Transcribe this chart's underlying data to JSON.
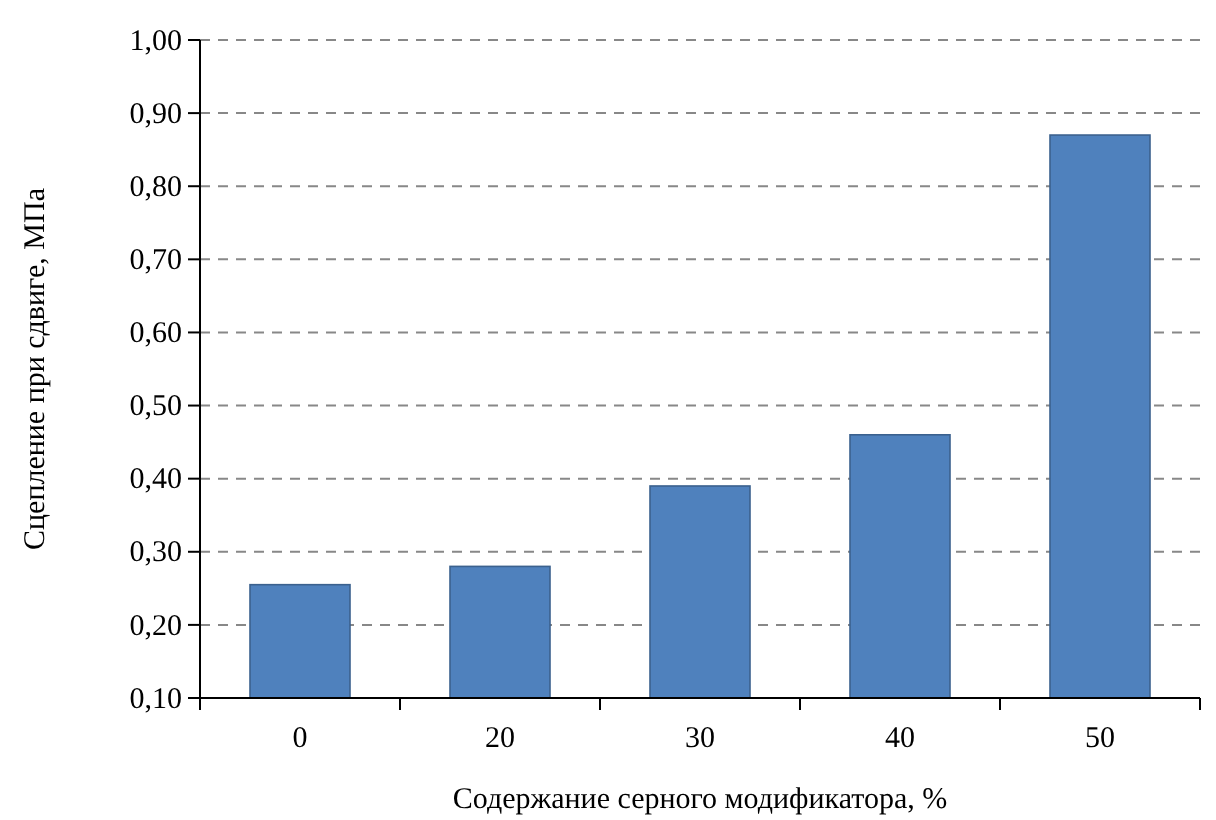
{
  "chart_data": {
    "type": "bar",
    "xlabel": "Содержание серного модификатора, %",
    "ylabel": "Сцепление при сдвиге, МПа",
    "categories": [
      "0",
      "20",
      "30",
      "40",
      "50"
    ],
    "values": [
      0.255,
      0.28,
      0.39,
      0.46,
      0.87
    ],
    "color": "#4f81bd",
    "ylim": [
      0.1,
      1.0
    ],
    "yticks": [
      {
        "value": 0.1,
        "label": "0,10"
      },
      {
        "value": 0.2,
        "label": "0,20"
      },
      {
        "value": 0.3,
        "label": "0,30"
      },
      {
        "value": 0.4,
        "label": "0,40"
      },
      {
        "value": 0.5,
        "label": "0,50"
      },
      {
        "value": 0.6,
        "label": "0,60"
      },
      {
        "value": 0.7,
        "label": "0,70"
      },
      {
        "value": 0.8,
        "label": "0,80"
      },
      {
        "value": 0.9,
        "label": "0,90"
      },
      {
        "value": 1.0,
        "label": "1,00"
      }
    ],
    "grid": "y",
    "line_style": "dashed"
  }
}
